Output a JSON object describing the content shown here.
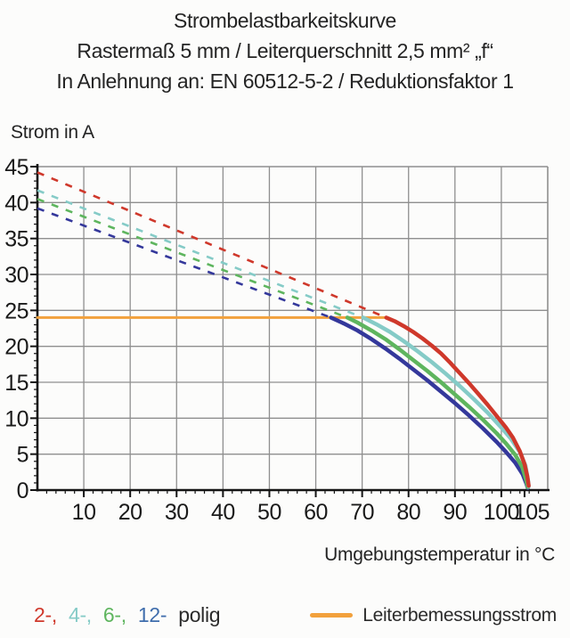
{
  "title": {
    "line1": "Strombelastbarkeitskurve",
    "line2": "Rastermaß 5 mm / Leiterquerschnitt 2,5 mm² „f“",
    "line3": "In Anlehnung an: EN 60512-5-2 / Reduktionsfaktor 1"
  },
  "axes": {
    "y_title": "Strom in A",
    "x_title": "Umgebungstemperatur in °C"
  },
  "legend": {
    "poles": [
      {
        "label": "2-,",
        "color": "#cf382b"
      },
      {
        "label": "4-,",
        "color": "#85cbc7"
      },
      {
        "label": "6-,",
        "color": "#5eb55e"
      },
      {
        "label": "12-",
        "color": "#3f6dac"
      }
    ],
    "suffix": "polig",
    "rated": {
      "label": "Leiterbemessungsstrom",
      "color": "#f2a13c"
    }
  },
  "colors": {
    "grid": "#8f8f8f",
    "axis": "#141414",
    "tick_text": "#1a1a1a"
  },
  "chart_data": {
    "type": "line",
    "title": "Strombelastbarkeitskurve",
    "xlabel": "Umgebungstemperatur in °C",
    "ylabel": "Strom in A",
    "xlim": [
      0,
      110
    ],
    "ylim": [
      0,
      45
    ],
    "x_ticks": [
      10,
      20,
      30,
      40,
      50,
      60,
      70,
      80,
      90,
      100,
      105
    ],
    "y_ticks": [
      0,
      5,
      10,
      15,
      20,
      25,
      30,
      35,
      40,
      45
    ],
    "x_minor_step": 2,
    "y_minor_step": 1,
    "grid": true,
    "rated_current": {
      "name": "Leiterbemessungsstrom",
      "value_A": 24,
      "t_span": [
        0,
        75.2
      ],
      "color": "#f2a13c"
    },
    "series": [
      {
        "name": "2-polig",
        "color": "#cf382b",
        "dashed": [
          [
            0,
            44.2
          ],
          [
            75.2,
            24
          ]
        ],
        "solid": [
          [
            75.2,
            24
          ],
          [
            77,
            23.5
          ],
          [
            79,
            22.8
          ],
          [
            81,
            22.0
          ],
          [
            83,
            21.1
          ],
          [
            85,
            20.1
          ],
          [
            87,
            19.0
          ],
          [
            89,
            17.7
          ],
          [
            91,
            16.3
          ],
          [
            93,
            14.9
          ],
          [
            95,
            13.4
          ],
          [
            97,
            11.9
          ],
          [
            99,
            10.3
          ],
          [
            101,
            8.7
          ],
          [
            102.5,
            7.3
          ],
          [
            104,
            5.4
          ],
          [
            105,
            3.6
          ],
          [
            105.6,
            1.9
          ],
          [
            105.9,
            0.6
          ]
        ]
      },
      {
        "name": "4-polig",
        "color": "#85cbc7",
        "dashed": [
          [
            0,
            41.7
          ],
          [
            70.2,
            24
          ]
        ],
        "solid": [
          [
            70.2,
            24
          ],
          [
            73,
            23.1
          ],
          [
            76,
            22.0
          ],
          [
            79,
            20.7
          ],
          [
            82,
            19.3
          ],
          [
            85,
            17.8
          ],
          [
            88,
            16.2
          ],
          [
            91,
            14.5
          ],
          [
            94,
            12.7
          ],
          [
            97,
            10.8
          ],
          [
            100,
            8.7
          ],
          [
            102,
            7.2
          ],
          [
            104,
            5.3
          ],
          [
            105.2,
            3.4
          ],
          [
            105.8,
            1.2
          ],
          [
            105.9,
            0.5
          ]
        ]
      },
      {
        "name": "6-polig",
        "color": "#5eb55e",
        "dashed": [
          [
            0,
            40.5
          ],
          [
            66.8,
            24
          ]
        ],
        "solid": [
          [
            66.8,
            24
          ],
          [
            69,
            23.3
          ],
          [
            72,
            22.2
          ],
          [
            75,
            21.0
          ],
          [
            78,
            19.6
          ],
          [
            81,
            18.1
          ],
          [
            84,
            16.6
          ],
          [
            87,
            15.0
          ],
          [
            90,
            13.3
          ],
          [
            93,
            11.6
          ],
          [
            96,
            9.8
          ],
          [
            99,
            7.9
          ],
          [
            101,
            6.5
          ],
          [
            103,
            4.9
          ],
          [
            104.5,
            3.2
          ],
          [
            105.4,
            1.3
          ],
          [
            105.7,
            0.4
          ]
        ]
      },
      {
        "name": "12-polig",
        "color": "#34389b",
        "dashed": [
          [
            0,
            39.2
          ],
          [
            63.3,
            24
          ]
        ],
        "solid": [
          [
            63.3,
            24
          ],
          [
            66,
            23.2
          ],
          [
            69,
            22.2
          ],
          [
            72,
            21.0
          ],
          [
            75,
            19.7
          ],
          [
            78,
            18.3
          ],
          [
            81,
            16.8
          ],
          [
            84,
            15.3
          ],
          [
            87,
            13.7
          ],
          [
            90,
            12.1
          ],
          [
            93,
            10.4
          ],
          [
            96,
            8.6
          ],
          [
            99,
            6.7
          ],
          [
            101,
            5.3
          ],
          [
            103,
            3.8
          ],
          [
            104.6,
            2.2
          ],
          [
            105.4,
            0.9
          ],
          [
            105.7,
            0.3
          ]
        ]
      }
    ]
  }
}
